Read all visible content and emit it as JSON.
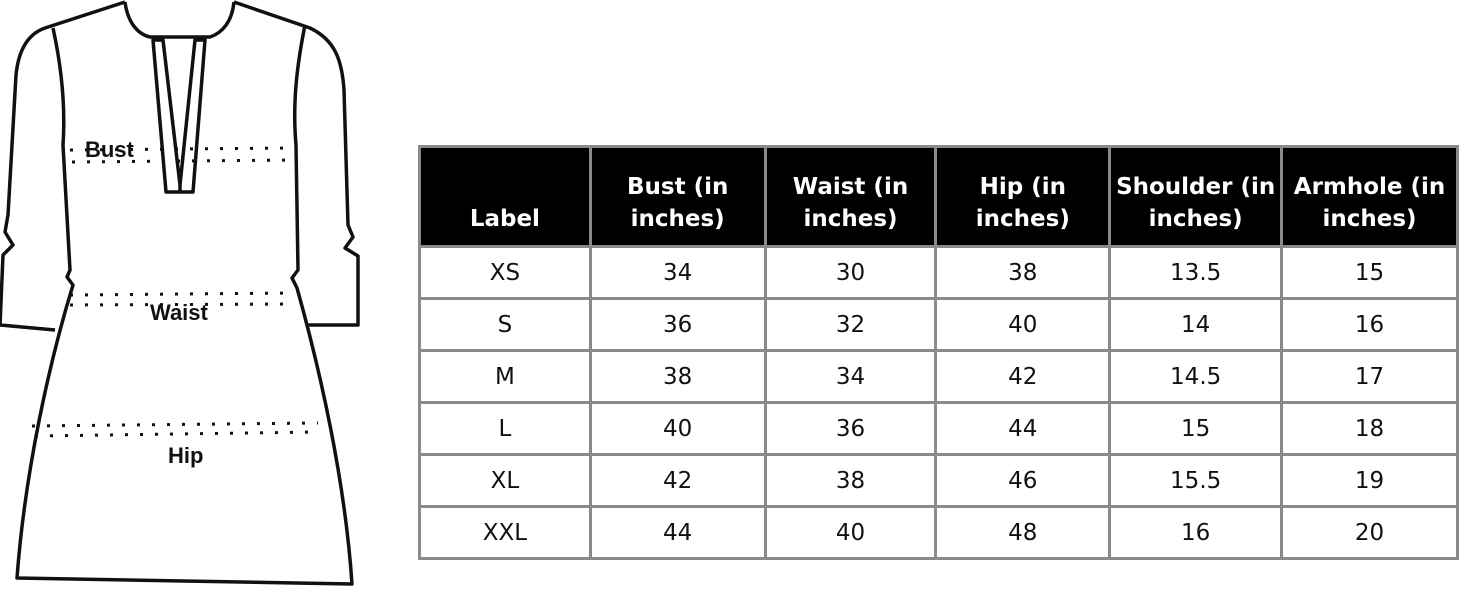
{
  "garment": {
    "labels": {
      "bust": "Bust",
      "waist": "Waist",
      "hip": "Hip"
    }
  },
  "size_table": {
    "headers": [
      "Label",
      "Bust (in inches)",
      "Waist (in inches)",
      "Hip (in inches)",
      "Shoulder (in inches)",
      "Armhole (in inches)"
    ],
    "rows": [
      [
        "XS",
        "34",
        "30",
        "38",
        "13.5",
        "15"
      ],
      [
        "S",
        "36",
        "32",
        "40",
        "14",
        "16"
      ],
      [
        "M",
        "38",
        "34",
        "42",
        "14.5",
        "17"
      ],
      [
        "L",
        "40",
        "36",
        "44",
        "15",
        "18"
      ],
      [
        "XL",
        "42",
        "38",
        "46",
        "15.5",
        "19"
      ],
      [
        "XXL",
        "44",
        "40",
        "48",
        "16",
        "20"
      ]
    ],
    "colors": {
      "header_bg": "#000000",
      "header_text": "#ffffff",
      "border": "#8a8a8a"
    }
  }
}
